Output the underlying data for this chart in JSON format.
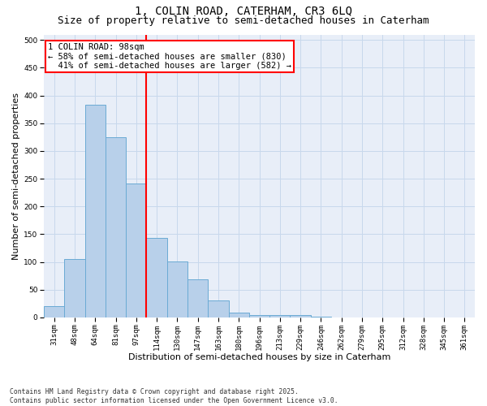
{
  "title_line1": "1, COLIN ROAD, CATERHAM, CR3 6LQ",
  "title_line2": "Size of property relative to semi-detached houses in Caterham",
  "xlabel": "Distribution of semi-detached houses by size in Caterham",
  "ylabel": "Number of semi-detached properties",
  "categories": [
    "31sqm",
    "48sqm",
    "64sqm",
    "81sqm",
    "97sqm",
    "114sqm",
    "130sqm",
    "147sqm",
    "163sqm",
    "180sqm",
    "196sqm",
    "213sqm",
    "229sqm",
    "246sqm",
    "262sqm",
    "279sqm",
    "295sqm",
    "312sqm",
    "328sqm",
    "345sqm",
    "361sqm"
  ],
  "values": [
    21,
    106,
    383,
    325,
    241,
    144,
    101,
    68,
    30,
    8,
    5,
    4,
    5,
    1,
    0,
    0,
    0,
    0,
    0,
    0,
    0
  ],
  "bar_color": "#b8d0ea",
  "bar_edge_color": "#6aaad4",
  "property_label": "1 COLIN ROAD: 98sqm",
  "pct_smaller": 58,
  "n_smaller": 830,
  "pct_larger": 41,
  "n_larger": 582,
  "vline_x_index": 4.5,
  "grid_color": "#c8d8ec",
  "background_color": "#e8eef8",
  "ylim": [
    0,
    510
  ],
  "yticks": [
    0,
    50,
    100,
    150,
    200,
    250,
    300,
    350,
    400,
    450,
    500
  ],
  "footnote": "Contains HM Land Registry data © Crown copyright and database right 2025.\nContains public sector information licensed under the Open Government Licence v3.0.",
  "title_fontsize": 10,
  "subtitle_fontsize": 9,
  "axis_label_fontsize": 8,
  "tick_fontsize": 6.5,
  "annotation_fontsize": 7.5
}
